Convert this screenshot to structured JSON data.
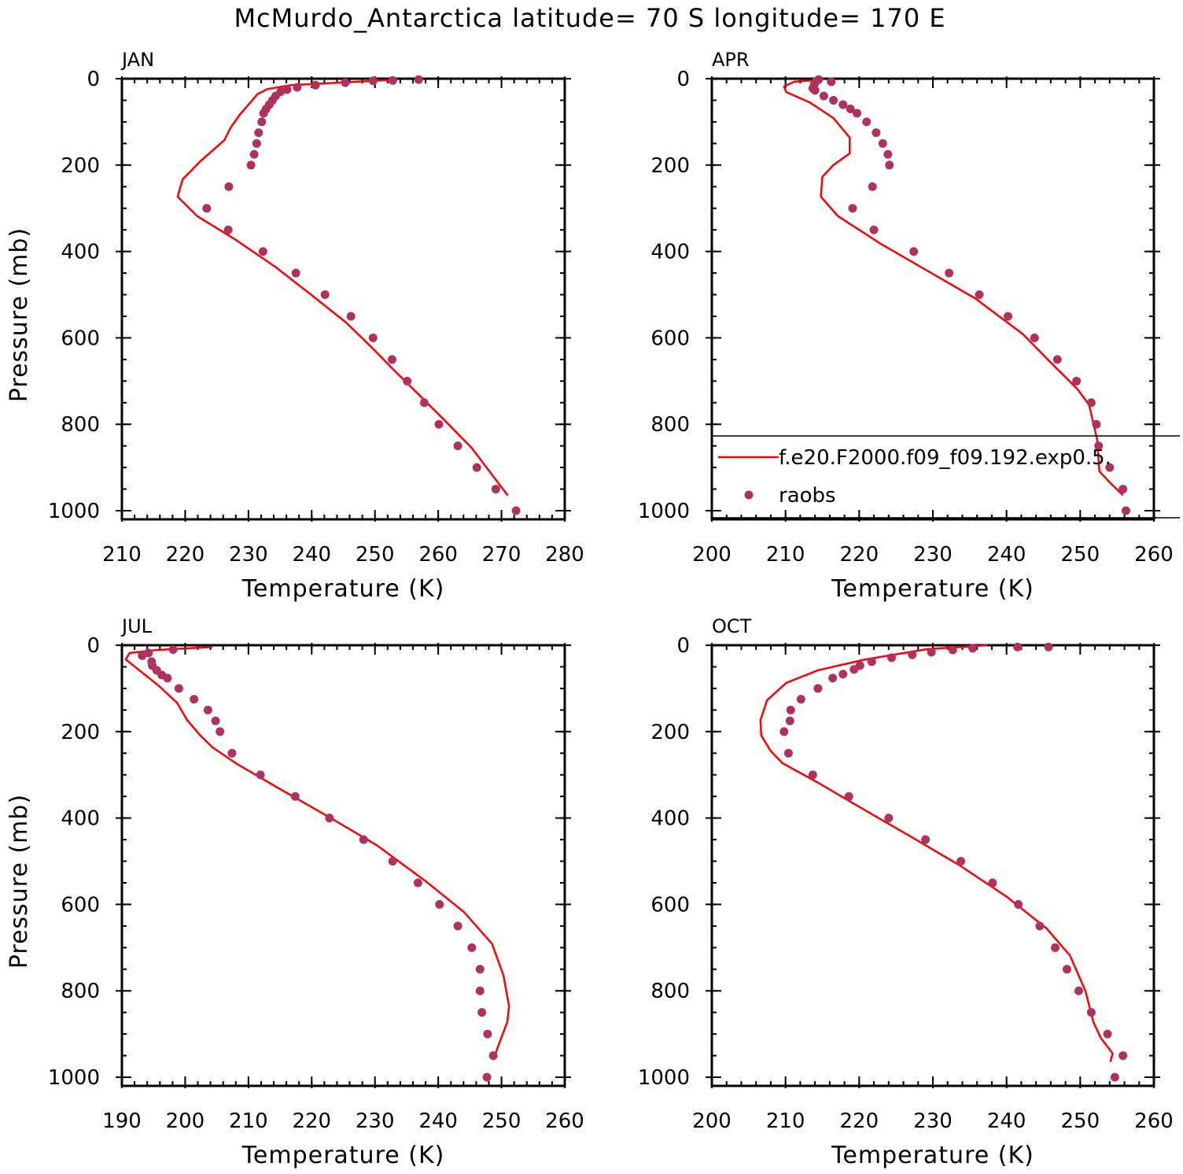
{
  "title": "McMurdo_Antarctica  latitude= 70 S longitude= 170 E",
  "chart_data": [
    {
      "type": "line",
      "panel_label": "JAN",
      "x_label": "Temperature (K)",
      "y_label": "Pressure (mb)",
      "xlim": [
        210,
        280
      ],
      "xticks": [
        210,
        220,
        230,
        240,
        250,
        260,
        270,
        280
      ],
      "x_minor_step": 2,
      "ylim": [
        0,
        1020
      ],
      "yticks": [
        0,
        200,
        400,
        600,
        800,
        1000
      ],
      "y_minor_step": 50,
      "y_inverted": true,
      "series": [
        {
          "color": "#ff0000",
          "style": "line",
          "x": [
            253.5,
            236.7,
            233,
            231.4,
            230.3,
            228.7,
            227.2,
            226.2,
            222.4,
            219.6,
            218.8,
            221.9,
            228,
            234.3,
            239.9,
            245.4,
            249.2,
            252.9,
            256,
            260.4,
            265.3,
            271
          ],
          "y": [
            2,
            15,
            24,
            36,
            55,
            82,
            113,
            142,
            191,
            233,
            273,
            318,
            373,
            436,
            500,
            564,
            618,
            673,
            718,
            782,
            855,
            965
          ]
        },
        {
          "color": "#b03060",
          "style": "marker",
          "x": [
            256.9,
            252.8,
            249.7,
            245.3,
            240.6,
            237.7,
            236.1,
            235.1,
            234.3,
            233.8,
            233.3,
            232.8,
            232.4,
            232.1,
            231.6,
            231.3,
            230.9,
            230.4,
            226.9,
            223.4,
            226.8,
            232.3,
            237.5,
            242.1,
            246.2,
            249.7,
            252.7,
            255.1,
            257.8,
            260.1,
            263.1,
            266.1,
            269.1,
            272.3
          ],
          "y": [
            2,
            4,
            5,
            9,
            15,
            20,
            25,
            30,
            40,
            50,
            60,
            70,
            80,
            100,
            125,
            150,
            175,
            200,
            250,
            300,
            350,
            400,
            450,
            500,
            550,
            600,
            650,
            700,
            750,
            800,
            850,
            900,
            950,
            1000
          ]
        }
      ]
    },
    {
      "type": "line",
      "panel_label": "APR",
      "x_label": "Temperature (K)",
      "legend": "lower right",
      "xlim": [
        200,
        260
      ],
      "xticks": [
        200,
        210,
        220,
        230,
        240,
        250,
        260
      ],
      "x_minor_step": 2,
      "ylim": [
        0,
        1020
      ],
      "yticks": [
        0,
        200,
        400,
        600,
        800,
        1000
      ],
      "y_minor_step": 50,
      "y_inverted": true,
      "series": [
        {
          "name": "f.e20.F2000.f09_f09.192.exp0.5.",
          "color": "#ff0000",
          "style": "line",
          "x": [
            214.9,
            211.2,
            209.8,
            210.1,
            213.3,
            216.5,
            218.7,
            218.7,
            216.5,
            215,
            214.8,
            217.1,
            222.9,
            229.3,
            235.8,
            242.2,
            246.4,
            249.6,
            251.2,
            252.3,
            252.6,
            254.1,
            255.8
          ],
          "y": [
            2,
            7,
            18,
            31,
            55,
            91,
            136,
            173,
            200,
            227,
            273,
            318,
            382,
            445,
            509,
            591,
            664,
            718,
            755,
            836,
            909,
            936,
            964
          ]
        },
        {
          "name": "raobs",
          "color": "#b03060",
          "style": "marker",
          "x": [
            216.2,
            214.5,
            214.1,
            213.9,
            213.7,
            214,
            215.2,
            216.5,
            217.8,
            218.8,
            219.7,
            221,
            222.3,
            223.2,
            223.9,
            224.1,
            221.8,
            219.1,
            222,
            227.4,
            232.2,
            236.3,
            240.2,
            243.8,
            246.9,
            249.5,
            251.5,
            252.2,
            252.5,
            254,
            255.8,
            256.2
          ],
          "y": [
            7,
            2,
            7,
            13,
            22,
            27,
            40,
            50,
            60,
            70,
            80,
            100,
            125,
            150,
            175,
            200,
            250,
            300,
            350,
            400,
            450,
            500,
            550,
            600,
            650,
            700,
            750,
            800,
            850,
            900,
            950,
            1000
          ]
        }
      ]
    },
    {
      "type": "line",
      "panel_label": "JUL",
      "x_label": "Temperature (K)",
      "y_label": "Pressure (mb)",
      "xlim": [
        190,
        260
      ],
      "xticks": [
        190,
        200,
        210,
        220,
        230,
        240,
        250,
        260
      ],
      "x_minor_step": 2,
      "ylim": [
        0,
        1020
      ],
      "yticks": [
        0,
        200,
        400,
        600,
        800,
        1000
      ],
      "y_minor_step": 50,
      "y_inverted": true,
      "series": [
        {
          "color": "#ff0000",
          "style": "line",
          "x": [
            204.3,
            195.6,
            191.2,
            190.6,
            192.5,
            195.6,
            198.7,
            200.3,
            202.4,
            204.3,
            208,
            214.3,
            223,
            230.4,
            237.9,
            244.1,
            248.5,
            250.3,
            251.2,
            250.9,
            249.5,
            248.7
          ],
          "y": [
            4,
            11,
            18,
            33,
            55,
            91,
            133,
            173,
            209,
            236,
            273,
            327,
            400,
            464,
            545,
            618,
            691,
            764,
            836,
            873,
            927,
            960
          ]
        },
        {
          "color": "#b03060",
          "style": "marker",
          "x": [
            198.1,
            193.2,
            194.2,
            194.7,
            194.8,
            195.5,
            196.3,
            197.2,
            199,
            201.4,
            203.6,
            204.8,
            205.5,
            207.4,
            211.9,
            217.4,
            222.8,
            228.2,
            232.8,
            236.8,
            240.2,
            243.1,
            245.3,
            246.6,
            246.6,
            246.9,
            247.8,
            248.7,
            247.7
          ],
          "y": [
            10,
            24,
            18,
            38,
            47,
            58,
            69,
            76,
            100,
            125,
            150,
            175,
            200,
            250,
            300,
            350,
            400,
            450,
            500,
            550,
            600,
            650,
            700,
            750,
            800,
            850,
            900,
            950,
            1000
          ]
        }
      ]
    },
    {
      "type": "line",
      "panel_label": "OCT",
      "x_label": "Temperature (K)",
      "xlim": [
        200,
        260
      ],
      "xticks": [
        200,
        210,
        220,
        230,
        240,
        250,
        260
      ],
      "x_minor_step": 2,
      "ylim": [
        0,
        1020
      ],
      "yticks": [
        0,
        200,
        400,
        600,
        800,
        1000
      ],
      "y_minor_step": 50,
      "y_inverted": true,
      "series": [
        {
          "color": "#ff0000",
          "style": "line",
          "x": [
            237.4,
            229.3,
            220.8,
            214.4,
            210.1,
            207.5,
            206.6,
            206.7,
            208,
            209.6,
            214.4,
            220.8,
            227.2,
            233.6,
            240,
            245.4,
            248.6,
            250.7,
            251.8,
            252.8,
            254.4,
            254.1
          ],
          "y": [
            0,
            9,
            33,
            58,
            87,
            127,
            173,
            209,
            245,
            273,
            318,
            382,
            445,
            509,
            582,
            655,
            718,
            800,
            873,
            909,
            945,
            964
          ]
        },
        {
          "color": "#b03060",
          "style": "marker",
          "x": [
            245.7,
            241.5,
            235.4,
            232.7,
            229.8,
            227.2,
            224.4,
            221.7,
            220.1,
            219.3,
            217.8,
            216.4,
            214.4,
            212.1,
            210.7,
            210.6,
            209.8,
            210.4,
            213.7,
            218.6,
            224,
            229,
            233.8,
            238.1,
            241.6,
            244.5,
            246.6,
            248.2,
            249.8,
            251.5,
            253.7,
            255.8,
            254.7
          ],
          "y": [
            4,
            4,
            7,
            11,
            16,
            22,
            29,
            38,
            47,
            56,
            67,
            76,
            100,
            125,
            150,
            175,
            200,
            250,
            300,
            350,
            400,
            450,
            500,
            550,
            600,
            650,
            700,
            750,
            800,
            850,
            900,
            950,
            1000
          ]
        }
      ]
    }
  ]
}
